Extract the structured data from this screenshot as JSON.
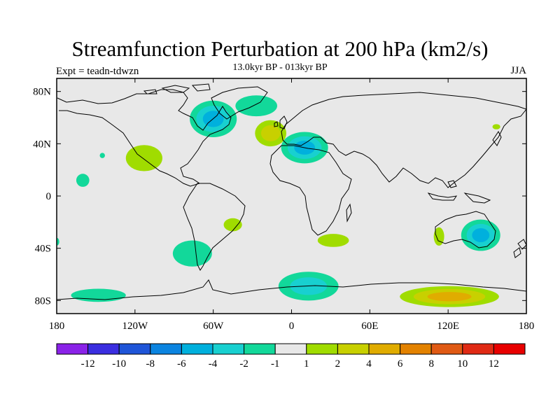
{
  "title": "Streamfunction Perturbation at 200 hPa (km2/s)",
  "subtitle": "13.0kyr BP - 013kyr BP",
  "left_label": "Expt = teadn-tdwzn",
  "right_label": "JJA",
  "map": {
    "projection": "cylindrical-equidistant",
    "lon_range": [
      -180,
      180
    ],
    "lat_range": [
      -90,
      90
    ],
    "lon_ticks": [
      "180",
      "120W",
      "60W",
      "0",
      "60E",
      "120E",
      "180"
    ],
    "lon_tick_values": [
      -180,
      -120,
      -60,
      0,
      60,
      120,
      180
    ],
    "lat_ticks": [
      "80N",
      "40N",
      "0",
      "40S",
      "80S"
    ],
    "lat_tick_values": [
      80,
      40,
      0,
      -40,
      -80
    ],
    "background_color": "#e8e8e8"
  },
  "colorbar": {
    "levels": [
      "-12",
      "-10",
      "-8",
      "-6",
      "-4",
      "-2",
      "-1",
      "1",
      "2",
      "4",
      "6",
      "8",
      "10",
      "12"
    ],
    "colors": [
      "#8a22e8",
      "#3b2ee0",
      "#1f55d8",
      "#0b84e0",
      "#00b0dd",
      "#18d0d0",
      "#12d89a",
      "#e8e8e8",
      "#a0dc00",
      "#c8d000",
      "#e0ac00",
      "#e38200",
      "#e05a14",
      "#e02a14",
      "#e80000"
    ]
  },
  "contour_patches": [
    {
      "name": "north-atlantic-low",
      "lon": -60,
      "lat": 59,
      "rlon": 18,
      "rlat": 14,
      "levels": [
        -1,
        -2,
        -4
      ]
    },
    {
      "name": "scandinavia-low",
      "lon": -27,
      "lat": 69,
      "rlon": 16,
      "rlat": 8,
      "levels": [
        -1
      ]
    },
    {
      "name": "north-atlantic-high",
      "lon": -16,
      "lat": 48,
      "rlon": 12,
      "rlat": 10,
      "levels": [
        1,
        2
      ]
    },
    {
      "name": "mediterranean-low",
      "lon": 10,
      "lat": 37,
      "rlon": 18,
      "rlat": 12,
      "levels": [
        -1,
        -2,
        -4
      ]
    },
    {
      "name": "east-pacific-high",
      "lon": -113,
      "lat": 29,
      "rlon": 14,
      "rlat": 10,
      "levels": [
        1
      ]
    },
    {
      "name": "hawaii-low",
      "lon": -160,
      "lat": 12,
      "rlon": 5,
      "rlat": 5,
      "levels": [
        -1
      ]
    },
    {
      "name": "central-pacific-low",
      "lon": -145,
      "lat": 31,
      "rlon": 2,
      "rlat": 2,
      "levels": [
        -1
      ]
    },
    {
      "name": "south-atlantic-high",
      "lon": -45,
      "lat": -22,
      "rlon": 7,
      "rlat": 5,
      "levels": [
        1
      ]
    },
    {
      "name": "south-america-low",
      "lon": -76,
      "lat": -44,
      "rlon": 15,
      "rlat": 10,
      "levels": [
        -1
      ]
    },
    {
      "name": "south-africa-high",
      "lon": 32,
      "lat": -34,
      "rlon": 12,
      "rlat": 5,
      "levels": [
        1
      ]
    },
    {
      "name": "australia-west-high",
      "lon": 113,
      "lat": -31,
      "rlon": 4,
      "rlat": 7,
      "levels": [
        1
      ]
    },
    {
      "name": "australia-east-low",
      "lon": 145,
      "lat": -30,
      "rlon": 15,
      "rlat": 12,
      "levels": [
        -1,
        -2,
        -4
      ]
    },
    {
      "name": "alaska-low",
      "lon": 157,
      "lat": 53,
      "rlon": 3,
      "rlat": 2,
      "levels": [
        1
      ]
    },
    {
      "name": "south-pacific-low",
      "lon": -148,
      "lat": -76,
      "rlon": 21,
      "rlat": 5,
      "levels": [
        -1
      ]
    },
    {
      "name": "southern-ocean-atlantic-low",
      "lon": 13,
      "lat": -69,
      "rlon": 23,
      "rlat": 11,
      "levels": [
        -1,
        -2
      ]
    },
    {
      "name": "antarctic-high",
      "lon": 121,
      "lat": -77,
      "rlon": 38,
      "rlat": 8,
      "levels": [
        1,
        2,
        4
      ]
    },
    {
      "name": "south-pacific-edge-low",
      "lon": -180,
      "lat": -35,
      "rlon": 2,
      "rlat": 3,
      "levels": [
        -1
      ]
    }
  ]
}
